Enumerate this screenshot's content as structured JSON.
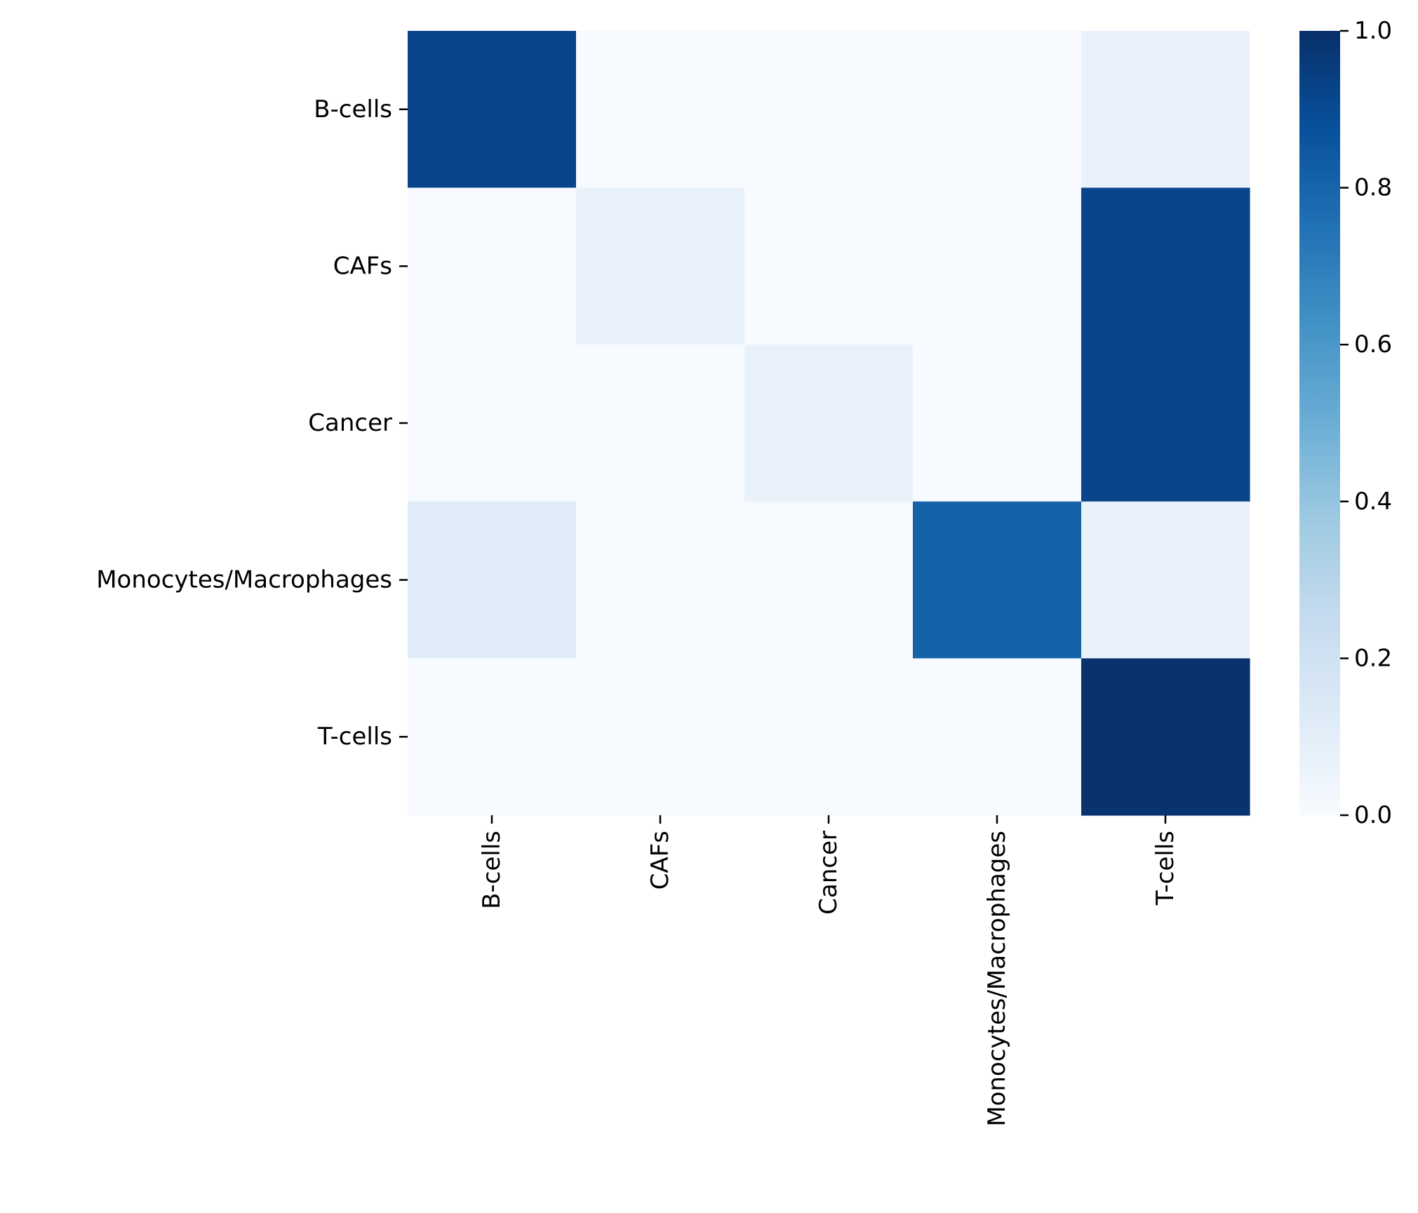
{
  "chart_data": {
    "type": "heatmap",
    "title": "",
    "xlabel": "",
    "ylabel": "",
    "x_categories": [
      "B-cells",
      "CAFs",
      "Cancer",
      "Monocytes/Macrophages",
      "T-cells"
    ],
    "y_categories": [
      "B-cells",
      "CAFs",
      "Cancer",
      "Monocytes/Macrophages",
      "T-cells"
    ],
    "values": [
      [
        0.92,
        0.0,
        0.0,
        0.0,
        0.07
      ],
      [
        0.0,
        0.07,
        0.0,
        0.0,
        0.92
      ],
      [
        0.0,
        0.0,
        0.07,
        0.0,
        0.92
      ],
      [
        0.12,
        0.0,
        0.01,
        0.81,
        0.07
      ],
      [
        0.0,
        0.0,
        0.0,
        0.0,
        0.99
      ]
    ],
    "colormap": "Blues",
    "vmin": 0.0,
    "vmax": 1.0,
    "colorbar": {
      "ticks": [
        0.0,
        0.2,
        0.4,
        0.6,
        0.8,
        1.0
      ],
      "tick_labels": [
        "0.0",
        "0.2",
        "0.4",
        "0.6",
        "0.8",
        "1.0"
      ]
    },
    "grid": false,
    "legend": "colorbar-right"
  }
}
